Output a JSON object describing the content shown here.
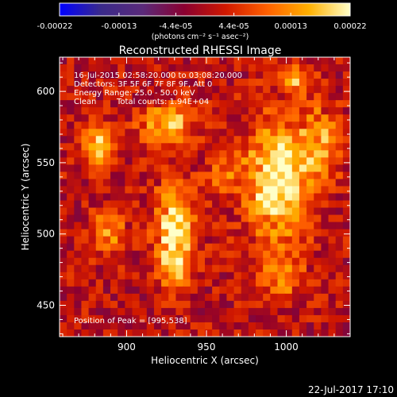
{
  "chart_data": {
    "type": "heatmap",
    "title": "Reconstructed RHESSI Image",
    "xlabel": "Heliocentric X (arcsec)",
    "ylabel": "Heliocentric Y (arcsec)",
    "xlim": [
      858,
      1040
    ],
    "ylim": [
      428,
      624
    ],
    "x_ticks": [
      "900",
      "950",
      "1000"
    ],
    "x_tick_values": [
      900,
      950,
      1000
    ],
    "y_ticks": [
      "450",
      "500",
      "550",
      "600"
    ],
    "y_tick_values": [
      450,
      500,
      550,
      600
    ],
    "colorbar": {
      "ticks": [
        "-0.00022",
        "-0.00013",
        "-4.4e-05",
        "4.4e-05",
        "0.00013",
        "0.00022"
      ],
      "tick_values": [
        -0.00022,
        -0.00013,
        -4.4e-05,
        4.4e-05,
        0.00013,
        0.00022
      ],
      "range": [
        -0.00022,
        0.00022
      ],
      "unit_label": "(photons cm⁻² s⁻¹ asec⁻²)",
      "colors": [
        "#0000ff",
        "#3a2a8a",
        "#5a2a7a",
        "#8a0030",
        "#d01800",
        "#ff6000",
        "#ffb000",
        "#ffffc8"
      ]
    },
    "annotations": {
      "time_range": "16-Jul-2015 02:58:20.000 to 03:08:20.000",
      "detectors": "Detectors: 3F 5F 6F 7F 8F 9F, Att 0",
      "energy": "Energy Range: 25.0 - 50.0 keV",
      "algorithm": "Clean",
      "counts": "Total counts: 1.94E+04",
      "peak": "Position of Peak = [995,538]"
    },
    "peak": [
      995,
      538
    ],
    "sources": [
      {
        "x": 995,
        "y": 538,
        "amp": 0.00022,
        "sx": 14,
        "sy": 28
      },
      {
        "x": 930,
        "y": 510,
        "amp": 0.00018,
        "sx": 9,
        "sy": 16
      },
      {
        "x": 882,
        "y": 560,
        "amp": 0.00016,
        "sx": 7,
        "sy": 10
      },
      {
        "x": 925,
        "y": 577,
        "amp": 0.00015,
        "sx": 12,
        "sy": 10
      },
      {
        "x": 930,
        "y": 480,
        "amp": 0.00014,
        "sx": 8,
        "sy": 14
      },
      {
        "x": 888,
        "y": 500,
        "amp": 0.00011,
        "sx": 8,
        "sy": 10
      },
      {
        "x": 1022,
        "y": 565,
        "amp": 0.00013,
        "sx": 8,
        "sy": 16
      },
      {
        "x": 995,
        "y": 470,
        "amp": 0.0001,
        "sx": 10,
        "sy": 10
      },
      {
        "x": 1005,
        "y": 608,
        "amp": 0.00012,
        "sx": 8,
        "sy": 6
      },
      {
        "x": 960,
        "y": 540,
        "amp": 9e-05,
        "sx": 8,
        "sy": 8
      }
    ]
  },
  "footer": {
    "date": "22-Jul-2017 17:10"
  }
}
